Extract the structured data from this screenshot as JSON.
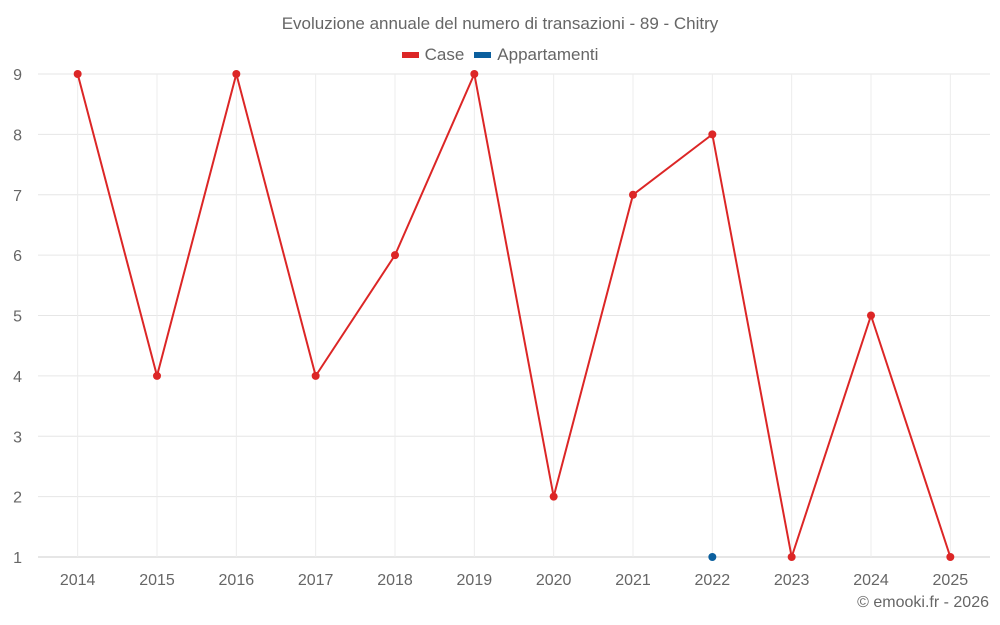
{
  "chart": {
    "title": "Evoluzione annuale del numero di transazioni - 89 - Chitry",
    "legend": [
      {
        "label": "Case",
        "color": "#dc2626"
      },
      {
        "label": "Appartamenti",
        "color": "#0b5f9e"
      }
    ],
    "footer": "© emooki.fr - 2026"
  },
  "chart_data": {
    "type": "line",
    "title": "Evoluzione annuale del numero di transazioni - 89 - Chitry",
    "xlabel": "",
    "ylabel": "",
    "categories": [
      "2014",
      "2015",
      "2016",
      "2017",
      "2018",
      "2019",
      "2020",
      "2021",
      "2022",
      "2023",
      "2024",
      "2025"
    ],
    "series": [
      {
        "name": "Case",
        "color": "#dc2626",
        "values": [
          9,
          4,
          9,
          4,
          6,
          9,
          2,
          7,
          8,
          1,
          5,
          1
        ]
      },
      {
        "name": "Appartamenti",
        "color": "#0b5f9e",
        "values": [
          null,
          null,
          null,
          null,
          null,
          null,
          null,
          null,
          1,
          null,
          null,
          null
        ]
      }
    ],
    "yticks": [
      1,
      2,
      3,
      4,
      5,
      6,
      7,
      8,
      9
    ],
    "ylim": [
      1,
      9
    ],
    "grid": true,
    "legend_position": "top"
  }
}
